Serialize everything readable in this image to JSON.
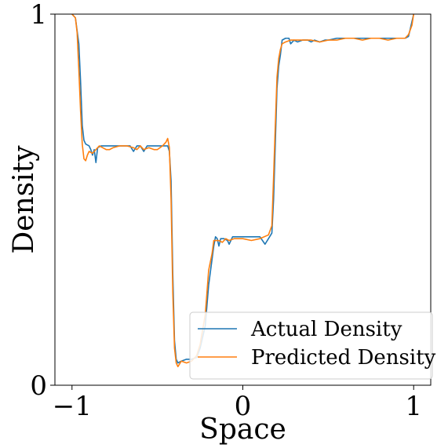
{
  "chart_data": {
    "type": "line",
    "xlabel": "Space",
    "ylabel": "Density",
    "xlim": [
      -1.1,
      1.1
    ],
    "ylim": [
      0,
      1
    ],
    "x_ticks": [
      -1,
      0,
      1
    ],
    "x_tick_labels": [
      "−1",
      "0",
      "1"
    ],
    "y_ticks": [
      0,
      1
    ],
    "y_tick_labels": [
      "0",
      "1"
    ],
    "grid": false,
    "legend_position": "lower-right",
    "series": [
      {
        "name": "Actual Density",
        "color": "#1f77b4",
        "points": [
          [
            -1.0,
            1.0
          ],
          [
            -0.98,
            0.99
          ],
          [
            -0.96,
            0.92
          ],
          [
            -0.95,
            0.82
          ],
          [
            -0.94,
            0.7
          ],
          [
            -0.93,
            0.66
          ],
          [
            -0.92,
            0.65
          ],
          [
            -0.9,
            0.645
          ],
          [
            -0.89,
            0.635
          ],
          [
            -0.88,
            0.62
          ],
          [
            -0.87,
            0.635
          ],
          [
            -0.86,
            0.6
          ],
          [
            -0.85,
            0.64
          ],
          [
            -0.83,
            0.645
          ],
          [
            -0.8,
            0.645
          ],
          [
            -0.76,
            0.645
          ],
          [
            -0.7,
            0.645
          ],
          [
            -0.66,
            0.645
          ],
          [
            -0.64,
            0.63
          ],
          [
            -0.62,
            0.645
          ],
          [
            -0.6,
            0.645
          ],
          [
            -0.58,
            0.63
          ],
          [
            -0.56,
            0.645
          ],
          [
            -0.54,
            0.645
          ],
          [
            -0.52,
            0.645
          ],
          [
            -0.5,
            0.645
          ],
          [
            -0.47,
            0.645
          ],
          [
            -0.44,
            0.645
          ],
          [
            -0.43,
            0.63
          ],
          [
            -0.42,
            0.55
          ],
          [
            -0.41,
            0.3
          ],
          [
            -0.4,
            0.12
          ],
          [
            -0.39,
            0.07
          ],
          [
            -0.38,
            0.06
          ],
          [
            -0.36,
            0.065
          ],
          [
            -0.33,
            0.07
          ],
          [
            -0.3,
            0.07
          ],
          [
            -0.27,
            0.075
          ],
          [
            -0.25,
            0.1
          ],
          [
            -0.22,
            0.16
          ],
          [
            -0.2,
            0.27
          ],
          [
            -0.18,
            0.34
          ],
          [
            -0.17,
            0.375
          ],
          [
            -0.16,
            0.4
          ],
          [
            -0.15,
            0.395
          ],
          [
            -0.14,
            0.375
          ],
          [
            -0.13,
            0.395
          ],
          [
            -0.11,
            0.395
          ],
          [
            -0.09,
            0.39
          ],
          [
            -0.08,
            0.38
          ],
          [
            -0.06,
            0.4
          ],
          [
            -0.03,
            0.4
          ],
          [
            0.0,
            0.4
          ],
          [
            0.05,
            0.4
          ],
          [
            0.1,
            0.4
          ],
          [
            0.13,
            0.38
          ],
          [
            0.15,
            0.395
          ],
          [
            0.17,
            0.41
          ],
          [
            0.18,
            0.5
          ],
          [
            0.19,
            0.65
          ],
          [
            0.2,
            0.8
          ],
          [
            0.21,
            0.86
          ],
          [
            0.22,
            0.89
          ],
          [
            0.23,
            0.93
          ],
          [
            0.25,
            0.935
          ],
          [
            0.27,
            0.935
          ],
          [
            0.28,
            0.92
          ],
          [
            0.3,
            0.93
          ],
          [
            0.32,
            0.925
          ],
          [
            0.35,
            0.93
          ],
          [
            0.38,
            0.93
          ],
          [
            0.4,
            0.925
          ],
          [
            0.42,
            0.93
          ],
          [
            0.45,
            0.925
          ],
          [
            0.48,
            0.93
          ],
          [
            0.5,
            0.93
          ],
          [
            0.55,
            0.935
          ],
          [
            0.6,
            0.935
          ],
          [
            0.65,
            0.935
          ],
          [
            0.7,
            0.935
          ],
          [
            0.75,
            0.935
          ],
          [
            0.8,
            0.935
          ],
          [
            0.85,
            0.935
          ],
          [
            0.9,
            0.935
          ],
          [
            0.95,
            0.935
          ],
          [
            0.97,
            0.94
          ],
          [
            0.98,
            0.96
          ],
          [
            1.0,
            1.0
          ]
        ]
      },
      {
        "name": "Predicted Density",
        "color": "#ff7f0e",
        "points": [
          [
            -1.0,
            1.0
          ],
          [
            -0.98,
            0.99
          ],
          [
            -0.97,
            0.95
          ],
          [
            -0.96,
            0.85
          ],
          [
            -0.95,
            0.74
          ],
          [
            -0.94,
            0.65
          ],
          [
            -0.93,
            0.61
          ],
          [
            -0.92,
            0.605
          ],
          [
            -0.91,
            0.62
          ],
          [
            -0.9,
            0.63
          ],
          [
            -0.88,
            0.625
          ],
          [
            -0.86,
            0.635
          ],
          [
            -0.84,
            0.645
          ],
          [
            -0.82,
            0.64
          ],
          [
            -0.8,
            0.635
          ],
          [
            -0.78,
            0.635
          ],
          [
            -0.76,
            0.64
          ],
          [
            -0.72,
            0.645
          ],
          [
            -0.68,
            0.645
          ],
          [
            -0.64,
            0.64
          ],
          [
            -0.62,
            0.635
          ],
          [
            -0.6,
            0.645
          ],
          [
            -0.58,
            0.635
          ],
          [
            -0.55,
            0.64
          ],
          [
            -0.52,
            0.635
          ],
          [
            -0.5,
            0.635
          ],
          [
            -0.47,
            0.645
          ],
          [
            -0.45,
            0.655
          ],
          [
            -0.44,
            0.665
          ],
          [
            -0.43,
            0.64
          ],
          [
            -0.42,
            0.5
          ],
          [
            -0.41,
            0.25
          ],
          [
            -0.4,
            0.1
          ],
          [
            -0.39,
            0.06
          ],
          [
            -0.38,
            0.05
          ],
          [
            -0.36,
            0.065
          ],
          [
            -0.33,
            0.06
          ],
          [
            -0.3,
            0.065
          ],
          [
            -0.27,
            0.08
          ],
          [
            -0.25,
            0.11
          ],
          [
            -0.22,
            0.19
          ],
          [
            -0.2,
            0.31
          ],
          [
            -0.18,
            0.355
          ],
          [
            -0.17,
            0.39
          ],
          [
            -0.16,
            0.39
          ],
          [
            -0.14,
            0.39
          ],
          [
            -0.12,
            0.385
          ],
          [
            -0.1,
            0.395
          ],
          [
            -0.08,
            0.39
          ],
          [
            -0.05,
            0.395
          ],
          [
            0.0,
            0.395
          ],
          [
            0.05,
            0.39
          ],
          [
            0.1,
            0.395
          ],
          [
            0.15,
            0.405
          ],
          [
            0.17,
            0.43
          ],
          [
            0.18,
            0.56
          ],
          [
            0.19,
            0.7
          ],
          [
            0.2,
            0.83
          ],
          [
            0.21,
            0.88
          ],
          [
            0.22,
            0.905
          ],
          [
            0.23,
            0.92
          ],
          [
            0.25,
            0.925
          ],
          [
            0.28,
            0.93
          ],
          [
            0.3,
            0.93
          ],
          [
            0.35,
            0.93
          ],
          [
            0.4,
            0.93
          ],
          [
            0.45,
            0.925
          ],
          [
            0.5,
            0.93
          ],
          [
            0.55,
            0.93
          ],
          [
            0.6,
            0.935
          ],
          [
            0.65,
            0.935
          ],
          [
            0.7,
            0.93
          ],
          [
            0.75,
            0.935
          ],
          [
            0.8,
            0.935
          ],
          [
            0.85,
            0.93
          ],
          [
            0.9,
            0.935
          ],
          [
            0.95,
            0.935
          ],
          [
            0.97,
            0.945
          ],
          [
            0.99,
            0.97
          ],
          [
            1.0,
            1.0
          ]
        ]
      }
    ]
  }
}
